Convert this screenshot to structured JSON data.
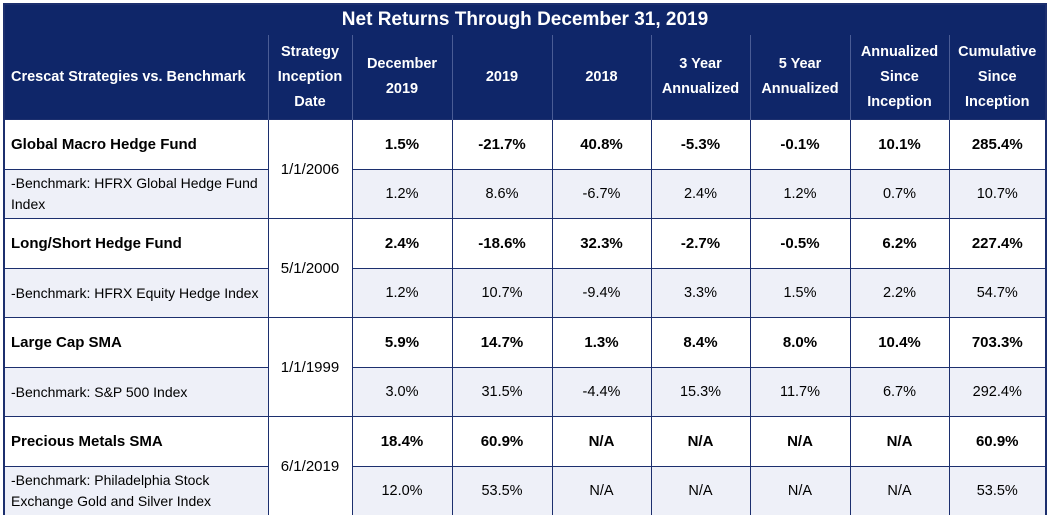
{
  "title": "Net Returns Through December 31, 2019",
  "header": {
    "name": "Crescat Strategies vs. Benchmark",
    "inception": [
      "Strategy",
      "Inception",
      "Date"
    ],
    "dec2019": [
      "December",
      "2019"
    ],
    "y2019": "2019",
    "y2018": "2018",
    "yr3": [
      "3 Year",
      "Annualized"
    ],
    "yr5": [
      "5 Year",
      "Annualized"
    ],
    "annual_since": [
      "Annualized",
      "Since",
      "Inception"
    ],
    "cumulative": [
      "Cumulative",
      "Since",
      "Inception"
    ]
  },
  "groups": [
    {
      "fund": "Global Macro Hedge Fund",
      "inception": "1/1/2006",
      "fund_values": [
        "1.5%",
        "-21.7%",
        "40.8%",
        "-5.3%",
        "-0.1%",
        "10.1%",
        "285.4%"
      ],
      "benchmark": [
        "-Benchmark: HFRX Global Hedge Fund",
        "Index"
      ],
      "bench_values": [
        "1.2%",
        "8.6%",
        "-6.7%",
        "2.4%",
        "1.2%",
        "0.7%",
        "10.7%"
      ]
    },
    {
      "fund": "Long/Short Hedge Fund",
      "inception": "5/1/2000",
      "fund_values": [
        "2.4%",
        "-18.6%",
        "32.3%",
        "-2.7%",
        "-0.5%",
        "6.2%",
        "227.4%"
      ],
      "benchmark": [
        "-Benchmark: HFRX Equity Hedge Index",
        ""
      ],
      "bench_values": [
        "1.2%",
        "10.7%",
        "-9.4%",
        "3.3%",
        "1.5%",
        "2.2%",
        "54.7%"
      ]
    },
    {
      "fund": "Large Cap SMA",
      "inception": "1/1/1999",
      "fund_values": [
        "5.9%",
        "14.7%",
        "1.3%",
        "8.4%",
        "8.0%",
        "10.4%",
        "703.3%"
      ],
      "benchmark": [
        "-Benchmark: S&P 500 Index",
        ""
      ],
      "bench_values": [
        "3.0%",
        "31.5%",
        "-4.4%",
        "15.3%",
        "11.7%",
        "6.7%",
        "292.4%"
      ]
    },
    {
      "fund": "Precious Metals SMA",
      "inception": "6/1/2019",
      "fund_values": [
        "18.4%",
        "60.9%",
        "N/A",
        "N/A",
        "N/A",
        "N/A",
        "60.9%"
      ],
      "benchmark": [
        "-Benchmark: Philadelphia Stock",
        "Exchange Gold and Silver Index"
      ],
      "bench_values": [
        "12.0%",
        "53.5%",
        "N/A",
        "N/A",
        "N/A",
        "N/A",
        "53.5%"
      ]
    }
  ]
}
